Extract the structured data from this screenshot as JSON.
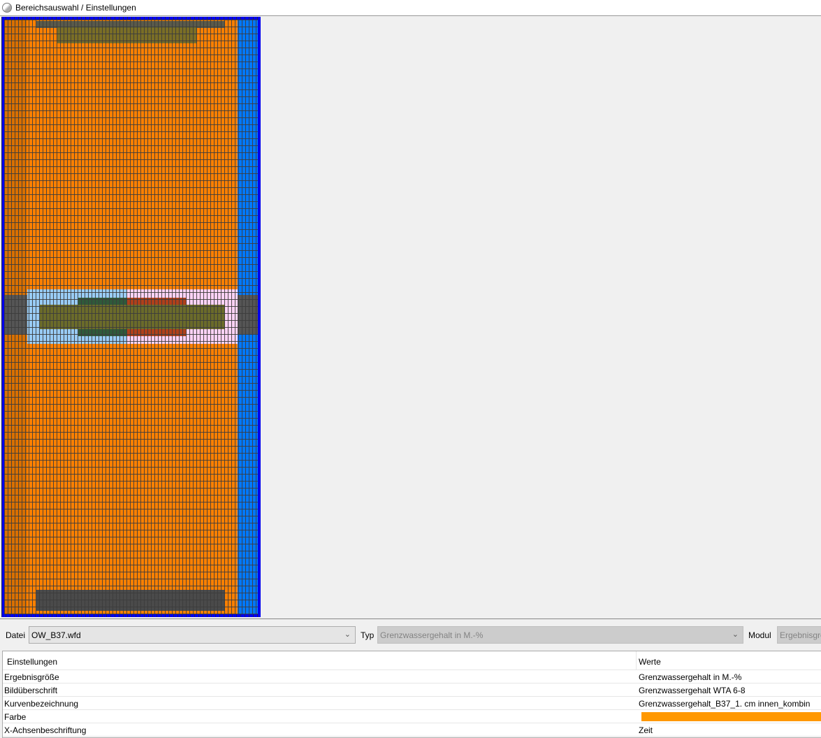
{
  "window": {
    "title": "Bereichsauswahl / Einstellungen"
  },
  "colors": {
    "frame": "#0000ee",
    "material_orange": "#ff8000",
    "material_dark_orange": "#d97000",
    "material_blue": "#0078ff",
    "light_blue": "#99ccf5",
    "pink": "#fcd2f5",
    "gray": "#4a4a4a",
    "olive": "#6b6b2a",
    "curve_color": "#ff9800"
  },
  "toolbar": {
    "datei_label": "Datei",
    "datei_value": "OW_B37.wfd",
    "typ_label": "Typ",
    "typ_value": "Grenzwassergehalt in M.-%",
    "modul_label": "Modul",
    "modul_value": "Ergebnisgröße"
  },
  "table": {
    "headers": [
      "Einstellungen",
      "Werte"
    ],
    "rows": [
      {
        "name": "Ergebnisgröße",
        "value": "Grenzwassergehalt in  M.-%"
      },
      {
        "name": "Bildüberschrift",
        "value": "Grenzwassergehalt WTA 6-8"
      },
      {
        "name": "Kurvenbezeichnung",
        "value": "Grenzwassergehalt_B37_1. cm innen_kombin"
      },
      {
        "name": "Farbe",
        "value": ""
      },
      {
        "name": "X-Achsenbeschriftung",
        "value": "Zeit"
      }
    ]
  }
}
